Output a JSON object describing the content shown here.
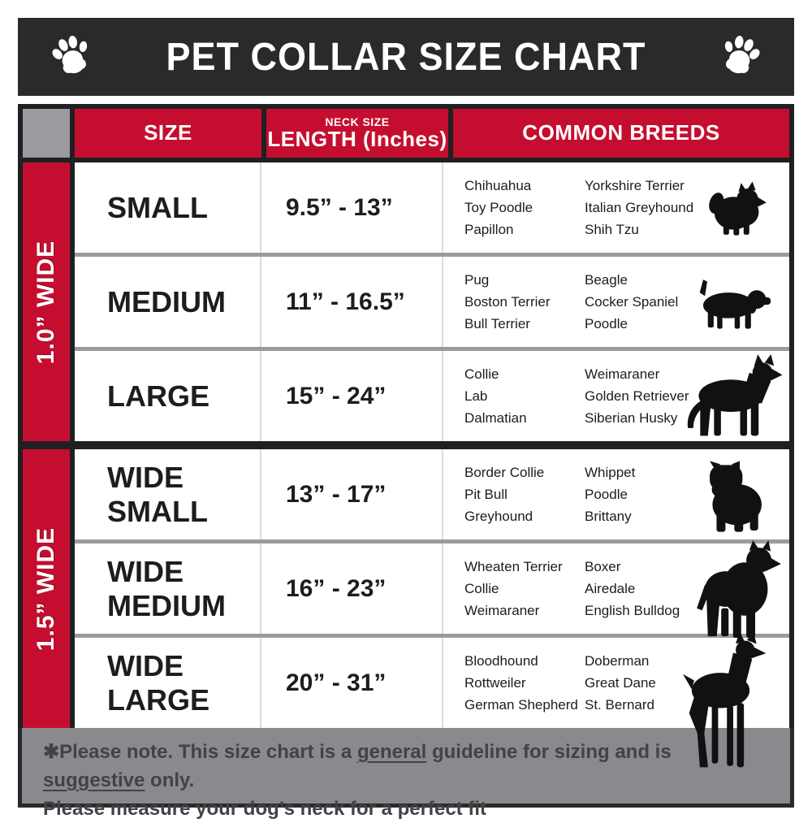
{
  "title": "PET COLLAR SIZE CHART",
  "header": {
    "size": "SIZE",
    "neck_label_top": "NECK SIZE",
    "neck_label_main": "LENGTH (Inches)",
    "breeds": "COMMON BREEDS"
  },
  "bands": [
    {
      "label": "1.0” WIDE"
    },
    {
      "label": "1.5” WIDE"
    }
  ],
  "rows": [
    {
      "size": "SMALL",
      "neck": "9.5” - 13”",
      "breeds_col1": [
        "Chihuahua",
        "Toy Poodle",
        "Papillon"
      ],
      "breeds_col2": [
        "Yorkshire Terrier",
        "Italian Greyhound",
        "Shih Tzu"
      ],
      "dog_icon": "pomeranian-silhouette"
    },
    {
      "size": "MEDIUM",
      "neck": "11” - 16.5”",
      "breeds_col1": [
        "Pug",
        "Boston Terrier",
        "Bull Terrier"
      ],
      "breeds_col2": [
        "Beagle",
        "Cocker Spaniel",
        "Poodle"
      ],
      "dog_icon": "beagle-silhouette"
    },
    {
      "size": "LARGE",
      "neck": "15” - 24”",
      "breeds_col1": [
        "Collie",
        "Lab",
        "Dalmatian"
      ],
      "breeds_col2": [
        "Weimaraner",
        "Golden Retriever",
        "Siberian Husky"
      ],
      "dog_icon": "shepherd-silhouette"
    },
    {
      "size": "WIDE SMALL",
      "neck": "13” - 17”",
      "breeds_col1": [
        "Border Collie",
        "Pit Bull",
        "Greyhound"
      ],
      "breeds_col2": [
        "Whippet",
        "Poodle",
        "Brittany"
      ],
      "dog_icon": "bulldog-silhouette"
    },
    {
      "size": "WIDE MEDIUM",
      "neck": "16” - 23”",
      "breeds_col1": [
        "Wheaten Terrier",
        "Collie",
        "Weimaraner"
      ],
      "breeds_col2": [
        "Boxer",
        "Airedale",
        "English Bulldog"
      ],
      "dog_icon": "pitbull-silhouette"
    },
    {
      "size": "WIDE LARGE",
      "neck": "20” - 31”",
      "breeds_col1": [
        "Bloodhound",
        "Rottweiler",
        "German Shepherd"
      ],
      "breeds_col2": [
        "Doberman",
        "Great Dane",
        "St. Bernard"
      ],
      "dog_icon": "doberman-silhouette"
    }
  ],
  "footer": {
    "line1_parts": [
      {
        "t": "✱Please note. This size chart is a "
      },
      {
        "t": "general",
        "u": true
      },
      {
        "t": " guideline for sizing and is "
      },
      {
        "t": "suggestive",
        "u": true
      },
      {
        "t": " only."
      }
    ],
    "line2": "Please measure your dog’s neck for a perfect fit"
  },
  "icons": {
    "title_left": "paw-icon",
    "title_right": "paw-icon"
  },
  "colors": {
    "accent_red": "#C50E2F",
    "bar_dark": "#2B292C",
    "border_black": "#201F21",
    "separator_gray": "#9B9A9E",
    "footer_gray": "#8A898D",
    "text_dark": "#1D1C1E"
  }
}
